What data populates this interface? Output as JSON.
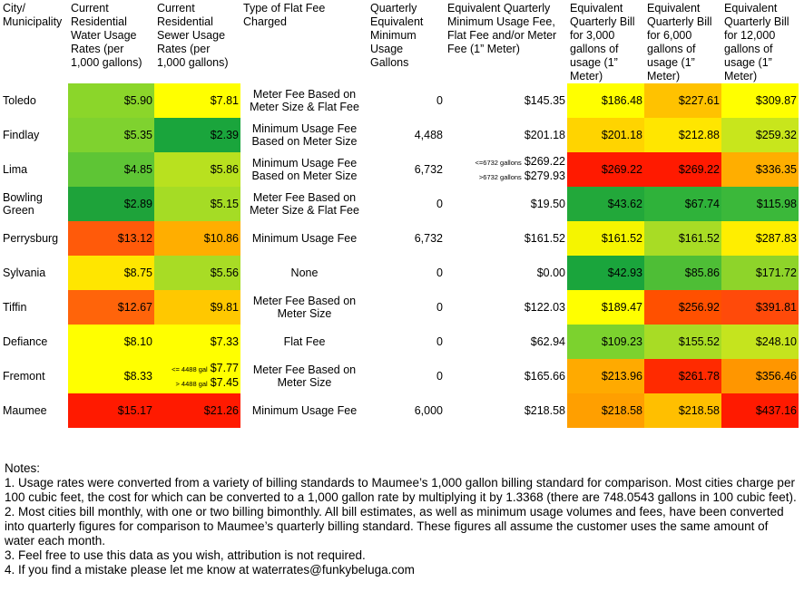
{
  "headers": [
    "City/ Municipality",
    "Current Residential Water Usage Rates (per 1,000 gallons)",
    "Current Residential Sewer Usage Rates (per 1,000 gallons)",
    "Type of Flat Fee Charged",
    "Quarterly Equivalent Minimum Usage Gallons",
    "Equivalent Quarterly Minimum Usage Fee, Flat Fee and/or Meter Fee (1” Meter)",
    "Equivalent Quarterly Bill for 3,000 gallons of usage (1” Meter)",
    "Equivalent Quarterly Bill for 6,000 gallons of usage (1” Meter)",
    "Equivalent Quarterly Bill for 12,000 gallons of usage (1” Meter)"
  ],
  "rows": [
    {
      "city": "Toledo",
      "water": "$5.90",
      "sewer": "$7.81",
      "fee_type": "Meter Fee Based on Meter Size & Flat Fee",
      "min_gal": "0",
      "min_fee": "$145.35",
      "b3": "$186.48",
      "b6": "$227.61",
      "b12": "$309.87",
      "colors": {
        "water": "#8bd62a",
        "sewer": "#ffff00",
        "b3": "#ffff00",
        "b6": "#ffc200",
        "b12": "#ffff00"
      }
    },
    {
      "city": "Findlay",
      "water": "$5.35",
      "sewer": "$2.39",
      "fee_type": "Minimum Usage Fee Based on Meter Size",
      "min_gal": "4,488",
      "min_fee": "$201.18",
      "b3": "$201.18",
      "b6": "$212.88",
      "b12": "$259.32",
      "colors": {
        "water": "#7fd22f",
        "sewer": "#1aa53c",
        "b3": "#ffd400",
        "b6": "#ffe600",
        "b12": "#c8e61c"
      }
    },
    {
      "city": "Lima",
      "water": "$4.85",
      "sewer": "$5.86",
      "fee_type": "Minimum Usage Fee Based on Meter Size",
      "min_gal": "6,732",
      "min_fee_split": [
        {
          "label": "<=6732 gallons",
          "value": "$269.22"
        },
        {
          "label": ">6732 gallons",
          "value": "$279.93"
        }
      ],
      "b3": "$269.22",
      "b6": "$269.22",
      "b12": "$336.35",
      "colors": {
        "water": "#5ec535",
        "sewer": "#b8e11f",
        "b3": "#ff1a00",
        "b6": "#ff1a00",
        "b12": "#ffae00"
      }
    },
    {
      "city": "Bowling Green",
      "water": "$2.89",
      "sewer": "$5.15",
      "fee_type": "Meter Fee Based on Meter Size & Flat Fee",
      "min_gal": "0",
      "min_fee": "$19.50",
      "b3": "$43.62",
      "b6": "$67.74",
      "b12": "$115.98",
      "colors": {
        "water": "#1ea33a",
        "sewer": "#a5dc25",
        "b3": "#22a83a",
        "b6": "#2fb23a",
        "b12": "#3bb83a"
      }
    },
    {
      "city": "Perrysburg",
      "water": "$13.12",
      "sewer": "$10.86",
      "fee_type": "Minimum Usage Fee",
      "min_gal": "6,732",
      "min_fee": "$161.52",
      "b3": "$161.52",
      "b6": "$161.52",
      "b12": "$287.83",
      "colors": {
        "water": "#ff5a0a",
        "sewer": "#ffae00",
        "b3": "#f5f500",
        "b6": "#a8dc25",
        "b12": "#ffee00"
      }
    },
    {
      "city": "Sylvania",
      "water": "$8.75",
      "sewer": "$5.56",
      "fee_type": "None",
      "min_gal": "0",
      "min_fee": "$0.00",
      "b3": "$42.93",
      "b6": "$85.86",
      "b12": "$171.72",
      "colors": {
        "water": "#ffe600",
        "sewer": "#a8dc25",
        "b3": "#1aa53c",
        "b6": "#4ebe36",
        "b12": "#8ed42a"
      }
    },
    {
      "city": "Tiffin",
      "water": "$12.67",
      "sewer": "$9.81",
      "fee_type": "Meter Fee Based on Meter Size",
      "min_gal": "0",
      "min_fee": "$122.03",
      "b3": "$189.47",
      "b6": "$256.92",
      "b12": "$391.81",
      "colors": {
        "water": "#ff640a",
        "sewer": "#ffc800",
        "b3": "#ffff00",
        "b6": "#ff5000",
        "b12": "#ff4a0a"
      }
    },
    {
      "city": "Defiance",
      "water": "$8.10",
      "sewer": "$7.33",
      "fee_type": "Flat Fee",
      "min_gal": "0",
      "min_fee": "$62.94",
      "b3": "$109.23",
      "b6": "$155.52",
      "b12": "$248.10",
      "colors": {
        "water": "#ffff00",
        "sewer": "#ffff00",
        "b3": "#7cd22e",
        "b6": "#a8dc25",
        "b12": "#c5e41e"
      }
    },
    {
      "city": "Fremont",
      "water": "$8.33",
      "sewer_split": [
        {
          "label": "<= 4488 gal",
          "value": "$7.77"
        },
        {
          "label": "> 4488 gal",
          "value": "$7.45"
        }
      ],
      "fee_type": "Meter Fee Based on Meter Size",
      "min_gal": "0",
      "min_fee": "$165.66",
      "b3": "$213.96",
      "b6": "$261.78",
      "b12": "$356.46",
      "colors": {
        "water": "#ffff00",
        "sewer": "#ffff00",
        "b3": "#ffaa00",
        "b6": "#ff2a00",
        "b12": "#ff9600"
      }
    },
    {
      "city": "Maumee",
      "water": "$15.17",
      "sewer": "$21.26",
      "fee_type": "Minimum Usage Fee",
      "min_gal": "6,000",
      "min_fee": "$218.58",
      "b3": "$218.58",
      "b6": "$218.58",
      "b12": "$437.16",
      "colors": {
        "water": "#ff1a00",
        "sewer": "#ff1a00",
        "b3": "#ff9f00",
        "b6": "#ffbf00",
        "b12": "#ff1a00"
      }
    }
  ],
  "notes": {
    "title": "Notes:",
    "items": [
      "1. Usage rates were converted from a variety of billing standards to Maumee’s 1,000 gallon billing standard for comparison. Most cities charge per 100 cubic feet, the cost for which can be converted to a 1,000 gallon rate by multiplying it by 1.3368 (there are 748.0543 gallons in 100 cubic feet).",
      "2. Most cities bill monthly, with one or two billing bimonthly. All bill estimates, as well as minimum usage volumes and fees, have been converted into quarterly figures for comparison to Maumee’s quarterly billing standard. These figures all assume the customer uses the same amount of water each month.",
      "3. Feel free to use this data as you wish, attribution is not required.",
      "4. If you find a mistake please let me know at waterrates@funkybeluga.com"
    ]
  }
}
